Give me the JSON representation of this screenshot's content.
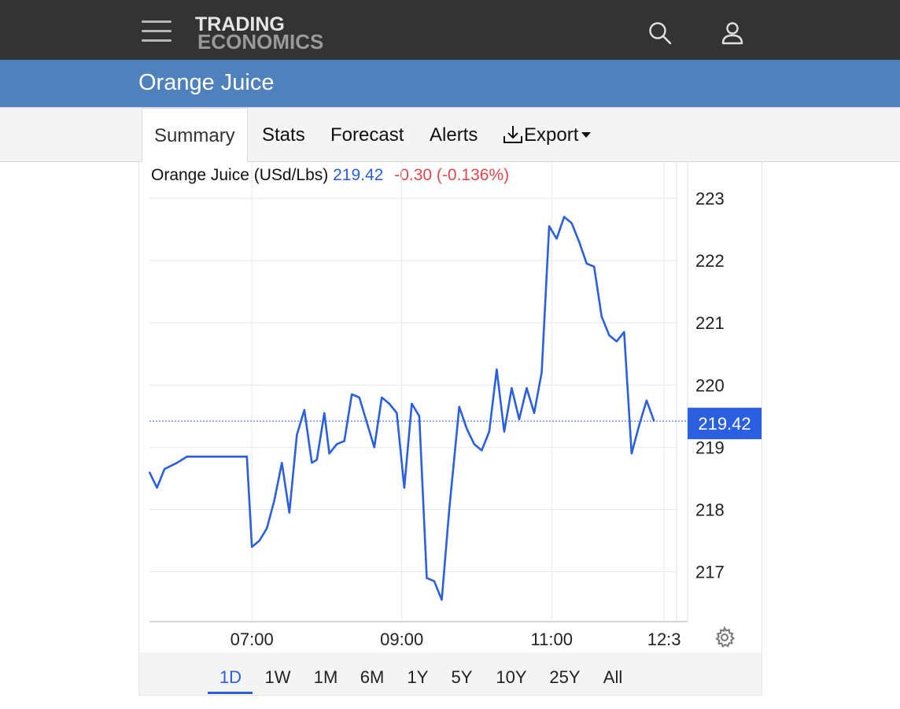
{
  "header": {
    "logo_line1": "TRADING",
    "logo_line2": "ECONOMICS",
    "menu_icon": "hamburger-menu-icon",
    "search_icon": "search-icon",
    "account_icon": "user-icon"
  },
  "page": {
    "title": "Orange Juice"
  },
  "tabs": [
    "Summary",
    "Stats",
    "Forecast",
    "Alerts",
    "Export"
  ],
  "tabs_active": "Summary",
  "export_icon": "download-icon",
  "quote": {
    "name": "Orange Juice (USd/Lbs)",
    "last": "219.42",
    "change": "-0.30 (-0.136%)"
  },
  "ranges": [
    "1D",
    "1W",
    "1M",
    "6M",
    "1Y",
    "5Y",
    "10Y",
    "25Y",
    "All"
  ],
  "ranges_active": "1D",
  "settings_icon": "gear-icon",
  "colors": {
    "line": "#2a5fe0",
    "negative": "#e0464b",
    "title_bar": "#4f81bd",
    "top_bar": "#333333"
  },
  "chart_data": {
    "type": "line",
    "series": [
      {
        "x": [
          "05:38",
          "05:44",
          "05:50",
          "06:00",
          "06:08",
          "06:14",
          "06:22",
          "06:32",
          "06:40",
          "06:48",
          "06:56",
          "07:00",
          "07:06",
          "07:12",
          "07:18",
          "07:24",
          "07:30",
          "07:36",
          "07:42",
          "07:48",
          "07:52",
          "07:58",
          "08:02",
          "08:08",
          "08:14",
          "08:20",
          "08:26",
          "08:32",
          "08:38",
          "08:44",
          "08:50",
          "08:56",
          "09:02",
          "09:08",
          "09:14",
          "09:20",
          "09:26",
          "09:32",
          "09:38",
          "09:46",
          "09:52",
          "09:58",
          "10:04",
          "10:10",
          "10:16",
          "10:22",
          "10:28",
          "10:34",
          "10:40",
          "10:46",
          "10:52",
          "10:58",
          "11:04",
          "11:10",
          "11:16",
          "11:22",
          "11:28",
          "11:34",
          "11:40",
          "11:46",
          "11:52",
          "11:58",
          "12:04",
          "12:10",
          "12:16",
          "12:22"
        ],
        "values": [
          218.6,
          218.35,
          218.65,
          218.75,
          218.85,
          218.85,
          218.85,
          218.85,
          218.85,
          218.85,
          218.85,
          217.4,
          217.5,
          217.7,
          218.15,
          218.75,
          217.95,
          219.2,
          219.6,
          218.75,
          218.8,
          219.55,
          218.9,
          219.05,
          219.1,
          219.85,
          219.8,
          219.4,
          219.0,
          219.8,
          219.7,
          219.55,
          218.35,
          219.7,
          219.5,
          216.9,
          216.85,
          216.55,
          218.0,
          219.65,
          219.3,
          219.05,
          218.95,
          219.25,
          220.25,
          219.25,
          219.95,
          219.45,
          219.95,
          219.55,
          220.2,
          222.55,
          222.35,
          222.7,
          222.6,
          222.3,
          221.95,
          221.9,
          221.1,
          220.8,
          220.7,
          220.85,
          218.9,
          219.35,
          219.75,
          219.42
        ]
      }
    ],
    "last_value": 219.42,
    "y_ticks": [
      217,
      218,
      219,
      220,
      221,
      222,
      223
    ],
    "x_ticks": [
      "07:00",
      "09:00",
      "11:00",
      "12:3"
    ],
    "ylim": [
      216.2,
      223.2
    ],
    "xlim": [
      "05:38",
      "12:40"
    ],
    "grid": true
  }
}
